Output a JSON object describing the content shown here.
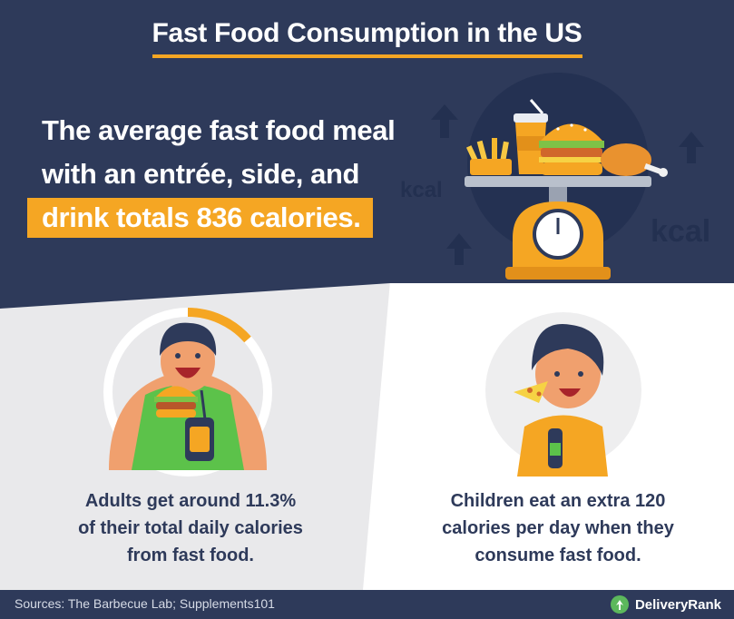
{
  "title": "Fast Food Consumption in the US",
  "headline": {
    "line1": "The average fast food meal",
    "line2": "with an entrée, side, and",
    "line3": "drink totals 836 calories."
  },
  "kcal_label_left": "kcal",
  "kcal_label_right": "kcal",
  "captions": {
    "adults": [
      "Adults get around 11.3%",
      "of their total daily calories",
      "from fast food."
    ],
    "children": [
      "Children eat an extra 120",
      "calories per day when they",
      "consume fast food."
    ]
  },
  "adult_daily_share_percent": 11.3,
  "footer": {
    "sources": "Sources: The Barbecue Lab; Supplements101",
    "brand": "DeliveryRank"
  },
  "colors": {
    "navy": "#2e3a5a",
    "accent_orange": "#f5a623",
    "light_gray": "#e9e9eb",
    "brand_green": "#5cb85c"
  }
}
